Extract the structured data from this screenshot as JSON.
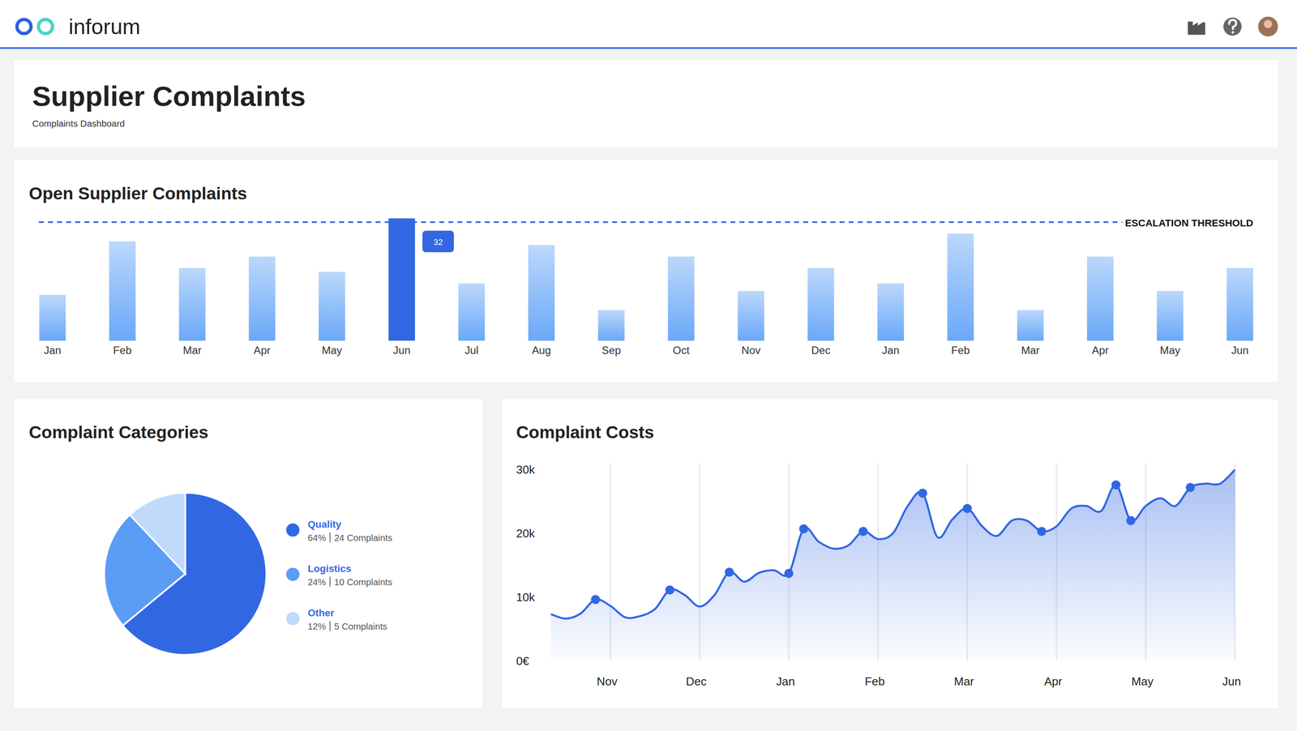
{
  "page": {
    "brand": "inforum",
    "title": "Supplier Complaints",
    "subtitle": "Complaints Dashboard"
  },
  "chart_data": [
    {
      "type": "bar",
      "title": "Open Supplier Complaints",
      "categories": [
        "Jan",
        "Feb",
        "Mar",
        "Apr",
        "May",
        "Jun",
        "Jul",
        "Aug",
        "Sep",
        "Oct",
        "Nov",
        "Dec",
        "Jan",
        "Feb",
        "Mar",
        "Apr",
        "May",
        "Jun"
      ],
      "values": [
        12,
        26,
        19,
        22,
        18,
        32,
        15,
        25,
        8,
        22,
        13,
        19,
        15,
        28,
        8,
        22,
        13,
        19
      ],
      "color": "#6aa8f8",
      "colors": [
        "#6aa8f8",
        "#6aa8f8",
        "#6aa8f8",
        "#6aa8f8",
        "#6aa8f8",
        "#3267e3",
        "#6aa8f8",
        "#6aa8f8",
        "#6aa8f8",
        "#6aa8f8",
        "#6aa8f8",
        "#6aa8f8",
        "#6aa8f8",
        "#6aa8f8",
        "#6aa8f8",
        "#6aa8f8",
        "#6aa8f8",
        "#6aa8f8"
      ],
      "ylim": [
        0,
        32
      ],
      "tick_labels": "x",
      "threshold": {
        "value": 31,
        "label": "ESCALATION THRESHOLD"
      }
    },
    {
      "type": "pie",
      "title": "Complaint Categories",
      "categories": [
        "Quality",
        "Logistics",
        "Other"
      ],
      "values": [
        64,
        24,
        12
      ],
      "value_labels": [
        "64%",
        "24%",
        "12%"
      ],
      "count_labels": [
        "24 Complaints",
        "10 Complaints",
        "5 Complaints"
      ],
      "colors": [
        "#3267e3",
        "#5b9cf6",
        "#c0dafc"
      ],
      "legend": "right"
    },
    {
      "type": "line",
      "title": "Complaint Costs",
      "categories": [
        null,
        null,
        null,
        null,
        "Nov",
        null,
        null,
        null,
        null,
        null,
        "Dec",
        null,
        null,
        null,
        null,
        null,
        "Jan",
        null,
        null,
        null,
        null,
        null,
        "Feb",
        null,
        null,
        null,
        null,
        null,
        "Mar",
        null,
        null,
        null,
        null,
        null,
        "Apr",
        null,
        null,
        null,
        null,
        null,
        "May",
        null,
        null,
        null,
        null,
        null,
        "Jun"
      ],
      "series": [
        {
          "color": "#3267e3",
          "values": [
            7300,
            6600,
            7400,
            9600,
            8600,
            6800,
            7000,
            8100,
            11100,
            10300,
            8500,
            10300,
            13900,
            12400,
            13800,
            14200,
            13700,
            20700,
            18700,
            17600,
            18100,
            20300,
            19100,
            20000,
            24300,
            26300,
            19400,
            22200,
            23900,
            21100,
            19600,
            22000,
            22000,
            20300,
            21100,
            23900,
            24300,
            23500,
            27600,
            22000,
            24300,
            25500,
            24300,
            27200,
            27800,
            27800,
            30000
          ]
        },
        {
          "type": "scatter",
          "color": "#3267e3",
          "values": [
            null,
            null,
            null,
            9600,
            null,
            null,
            null,
            null,
            11100,
            null,
            null,
            null,
            13900,
            null,
            null,
            null,
            13700,
            20700,
            null,
            null,
            null,
            20300,
            null,
            null,
            null,
            26300,
            null,
            null,
            23900,
            null,
            null,
            null,
            null,
            20300,
            null,
            null,
            null,
            null,
            27600,
            22000,
            null,
            null,
            null,
            27200,
            null,
            null,
            null
          ]
        }
      ],
      "ylim": [
        0,
        30000
      ],
      "yticks": [
        {
          "value": 0,
          "label": "0€"
        },
        {
          "value": 10000,
          "label": "10k"
        },
        {
          "value": 20000,
          "label": "20k"
        },
        {
          "value": 30000,
          "label": "30k"
        }
      ],
      "grid": true
    }
  ]
}
